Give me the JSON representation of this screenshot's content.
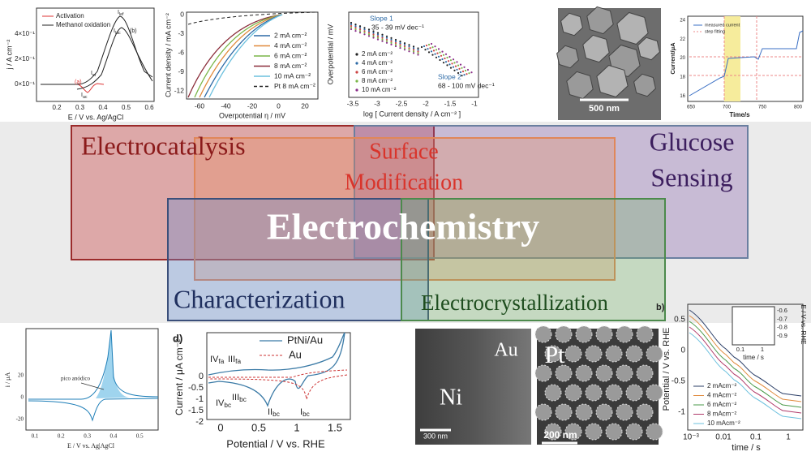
{
  "labels": {
    "electrocatalysis": "Electrocatalysis",
    "surface": [
      "Surface",
      "Modification"
    ],
    "glucose": [
      "Glucose",
      "Sensing"
    ],
    "characterization": "Characterization",
    "electrocrystallization": "Electrocrystallization",
    "center": "Electrochemistry"
  },
  "panel_a": {
    "legend": [
      "Activation",
      "Methanol oxidation"
    ],
    "y_label": "j / A cm⁻²",
    "y_ticks": [
      "4×10⁻¹",
      "2×10⁻¹",
      "0×10⁻¹"
    ],
    "x_ticks": [
      "0.2",
      "0.3",
      "0.4",
      "0.5",
      "0.6"
    ],
    "x_label": "E / V vs. Ag/AgCl",
    "annotations": [
      "(a)",
      "(b)",
      {
        "main": "I",
        "sub": "lef"
      },
      {
        "main": "I",
        "sub": "lac"
      },
      {
        "main": "I",
        "sub": "ef"
      },
      {
        "main": "I",
        "sub": "ac"
      }
    ]
  },
  "panel_b": {
    "y_label": "Current density / mA cm⁻²",
    "y_ticks": [
      "0",
      "-3",
      "-6",
      "-9",
      "-12"
    ],
    "x_ticks": [
      "-60",
      "-40",
      "-20",
      "0",
      "20"
    ],
    "x_label": "Overpotential η / mV",
    "legend": [
      "2 mA cm⁻²",
      "4 mA cm⁻²",
      "6 mA cm⁻²",
      "8 mA cm⁻²",
      "10 mA cm⁻²",
      "Pt 8 mA cm⁻²"
    ]
  },
  "panel_c": {
    "y_label": "Overpotential / mV",
    "x_ticks": [
      "-3.5",
      "-3",
      "-2.5",
      "-2",
      "-1.5",
      "-1"
    ],
    "x_label": "log [ Current density / A cm⁻² ]",
    "slope1": [
      "Slope 1",
      "35 - 39 mV dec⁻¹"
    ],
    "slope2": [
      "Slope 2",
      "68 - 100 mV dec⁻¹"
    ],
    "legend": [
      "2 mA cm⁻²",
      "4 mA cm⁻²",
      "6 mA cm⁻²",
      "8 mA cm⁻²",
      "10 mA cm⁻²"
    ]
  },
  "panel_d": {
    "scale": "500 nm"
  },
  "panel_e": {
    "legend": [
      "measured current",
      "step fitting"
    ],
    "y_label": "Current/μA",
    "y_ticks": [
      "24",
      "22",
      "20",
      "18",
      "16"
    ],
    "x_ticks": [
      "650",
      "700",
      "750",
      "800"
    ],
    "x_label": "Time/s"
  },
  "panel_f": {
    "y_label": "i / μA",
    "y_ticks": [
      "20",
      "0",
      "-20"
    ],
    "x_ticks": [
      "0.1",
      "0.2",
      "0.3",
      "0.4",
      "0.5"
    ],
    "x_label": "E / V vs. Ag|AgCl",
    "annotation": "pico anódico"
  },
  "panel_g": {
    "tag": "d)",
    "legend": [
      "PtNi/Au",
      "Au"
    ],
    "y_label": "Current / μA cm⁻²",
    "y_ticks": [
      "0",
      "-0.5",
      "-1",
      "-1.5",
      "-2"
    ],
    "x_ticks": [
      "0",
      "0.5",
      "1",
      "1.5"
    ],
    "x_label": "Potential / V vs. RHE",
    "peaks": [
      {
        "main": "IV",
        "sub": "fa"
      },
      {
        "main": "III",
        "sub": "fa"
      },
      {
        "main": "IV",
        "sub": "bc"
      },
      {
        "main": "III",
        "sub": "bc"
      },
      {
        "main": "II",
        "sub": "bc"
      },
      {
        "main": "I",
        "sub": "bc"
      }
    ]
  },
  "panel_h": {
    "labels": [
      "Au",
      "Ni"
    ],
    "scale": "300 nm"
  },
  "panel_i": {
    "label": "Pt",
    "scale": "200 nm"
  },
  "panel_j": {
    "tag": "b)",
    "y_label": "Potential / V vs. RHE",
    "y_ticks": [
      "0.5",
      "0",
      "-0.5",
      "-1"
    ],
    "x_ticks": [
      "10⁻³",
      "0.01",
      "0.1",
      "1"
    ],
    "x_label": "time / s",
    "legend": [
      "2 mAcm⁻²",
      "4 mAcm⁻²",
      "6 mAcm⁻²",
      "8 mAcm⁻²",
      "10 mAcm⁻²"
    ],
    "inset": {
      "y_label": "E / V vs. RHE",
      "y_ticks": [
        "-0.6",
        "-0.7",
        "-0.8",
        "-0.9"
      ],
      "x_ticks": [
        "0.1",
        "1"
      ],
      "x_label": "time / s"
    }
  }
}
